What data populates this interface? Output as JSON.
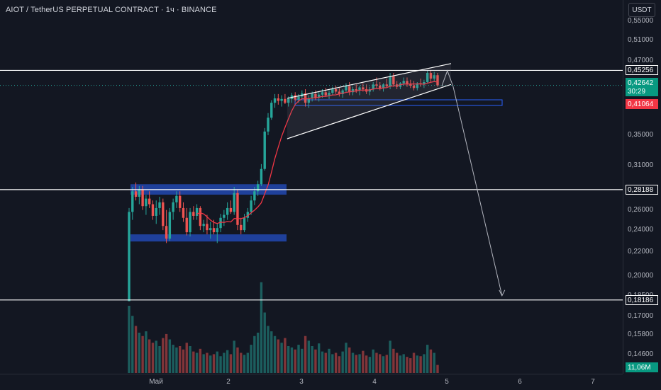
{
  "header": {
    "title": "AIOT / TetherUS PERPETUAL CONTRACT · 1ч · BINANCE"
  },
  "currency_button": "USDT",
  "price_axis": {
    "ticks": [
      "0,55000",
      "0,51000",
      "0,47000",
      "0,35000",
      "0,31000",
      "0,26000",
      "0,24000",
      "0,22000",
      "0,20000",
      "0,18500",
      "0,17000",
      "0,15800",
      "0,14600"
    ],
    "tick_values": [
      0.55,
      0.51,
      0.47,
      0.35,
      0.31,
      0.26,
      0.24,
      0.22,
      0.2,
      0.185,
      0.17,
      0.158,
      0.146
    ]
  },
  "price_labels": {
    "level_1": "0,45256",
    "current_price": "0,42642",
    "countdown": "30:29",
    "ma_value": "0,41064",
    "level_2": "0,28188",
    "level_3": "0,18186",
    "volume": "11,06M"
  },
  "time_axis": {
    "labels": [
      "Май",
      "2",
      "3",
      "4",
      "5",
      "6",
      "7"
    ]
  },
  "colors": {
    "background": "#131722",
    "up": "#26a69a",
    "down": "#ef5350",
    "ma": "#f23645",
    "range_box": "#2962ff",
    "level_line": "#ffffff"
  },
  "chart_data": {
    "type": "candlestick",
    "y_scale": "log",
    "horizontal_levels": [
      0.45256,
      0.28188,
      0.18186
    ],
    "current_price": 0.42642,
    "ma_value": 0.41064,
    "volume_last": "11,06M",
    "range_box": {
      "top": [
        0.281,
        0.288
      ],
      "bottom": [
        0.232,
        0.236
      ]
    },
    "rising_channel": {
      "upper": [
        [
          2.8,
          0.405
        ],
        [
          5.05,
          0.465
        ]
      ],
      "lower": [
        [
          2.8,
          0.345
        ],
        [
          5.05,
          0.428
        ]
      ]
    },
    "projection_arrow": {
      "from": [
        5.0,
        0.452
      ],
      "to": [
        5.75,
        0.185
      ]
    },
    "candles": [
      [
        0.181,
        0.262,
        0.181,
        0.258
      ],
      [
        0.258,
        0.285,
        0.25,
        0.28
      ],
      [
        0.28,
        0.29,
        0.27,
        0.274
      ],
      [
        0.274,
        0.286,
        0.266,
        0.282
      ],
      [
        0.282,
        0.286,
        0.26,
        0.264
      ],
      [
        0.264,
        0.276,
        0.255,
        0.272
      ],
      [
        0.272,
        0.28,
        0.262,
        0.266
      ],
      [
        0.266,
        0.27,
        0.25,
        0.254
      ],
      [
        0.254,
        0.27,
        0.246,
        0.262
      ],
      [
        0.262,
        0.274,
        0.255,
        0.268
      ],
      [
        0.268,
        0.272,
        0.24,
        0.244
      ],
      [
        0.244,
        0.26,
        0.228,
        0.232
      ],
      [
        0.232,
        0.262,
        0.23,
        0.258
      ],
      [
        0.258,
        0.272,
        0.25,
        0.268
      ],
      [
        0.268,
        0.28,
        0.262,
        0.275
      ],
      [
        0.275,
        0.28,
        0.258,
        0.262
      ],
      [
        0.262,
        0.268,
        0.248,
        0.252
      ],
      [
        0.252,
        0.262,
        0.235,
        0.238
      ],
      [
        0.238,
        0.262,
        0.234,
        0.258
      ],
      [
        0.258,
        0.264,
        0.25,
        0.254
      ],
      [
        0.254,
        0.266,
        0.25,
        0.262
      ],
      [
        0.262,
        0.264,
        0.24,
        0.244
      ],
      [
        0.244,
        0.25,
        0.238,
        0.246
      ],
      [
        0.246,
        0.255,
        0.236,
        0.24
      ],
      [
        0.24,
        0.248,
        0.232,
        0.242
      ],
      [
        0.242,
        0.25,
        0.236,
        0.238
      ],
      [
        0.238,
        0.246,
        0.228,
        0.242
      ],
      [
        0.242,
        0.256,
        0.238,
        0.252
      ],
      [
        0.252,
        0.26,
        0.244,
        0.255
      ],
      [
        0.255,
        0.268,
        0.25,
        0.262
      ],
      [
        0.262,
        0.27,
        0.256,
        0.258
      ],
      [
        0.258,
        0.285,
        0.255,
        0.278
      ],
      [
        0.278,
        0.282,
        0.24,
        0.245
      ],
      [
        0.245,
        0.252,
        0.236,
        0.24
      ],
      [
        0.24,
        0.256,
        0.238,
        0.252
      ],
      [
        0.252,
        0.262,
        0.248,
        0.258
      ],
      [
        0.258,
        0.275,
        0.255,
        0.27
      ],
      [
        0.27,
        0.285,
        0.265,
        0.28
      ],
      [
        0.28,
        0.292,
        0.275,
        0.288
      ],
      [
        0.288,
        0.312,
        0.286,
        0.306
      ],
      [
        0.306,
        0.36,
        0.304,
        0.355
      ],
      [
        0.355,
        0.382,
        0.35,
        0.375
      ],
      [
        0.375,
        0.402,
        0.372,
        0.398
      ],
      [
        0.398,
        0.412,
        0.39,
        0.405
      ],
      [
        0.405,
        0.412,
        0.395,
        0.401
      ],
      [
        0.401,
        0.41,
        0.392,
        0.404
      ],
      [
        0.404,
        0.412,
        0.396,
        0.398
      ],
      [
        0.398,
        0.408,
        0.392,
        0.404
      ],
      [
        0.404,
        0.414,
        0.398,
        0.41
      ],
      [
        0.41,
        0.415,
        0.4,
        0.403
      ],
      [
        0.403,
        0.412,
        0.398,
        0.408
      ],
      [
        0.408,
        0.418,
        0.404,
        0.413
      ],
      [
        0.413,
        0.42,
        0.392,
        0.398
      ],
      [
        0.398,
        0.41,
        0.39,
        0.405
      ],
      [
        0.405,
        0.416,
        0.4,
        0.412
      ],
      [
        0.412,
        0.418,
        0.402,
        0.406
      ],
      [
        0.406,
        0.416,
        0.4,
        0.411
      ],
      [
        0.411,
        0.42,
        0.406,
        0.415
      ],
      [
        0.415,
        0.422,
        0.408,
        0.41
      ],
      [
        0.41,
        0.418,
        0.404,
        0.414
      ],
      [
        0.414,
        0.424,
        0.41,
        0.42
      ],
      [
        0.42,
        0.426,
        0.412,
        0.416
      ],
      [
        0.416,
        0.422,
        0.408,
        0.412
      ],
      [
        0.412,
        0.42,
        0.406,
        0.418
      ],
      [
        0.418,
        0.43,
        0.414,
        0.425
      ],
      [
        0.425,
        0.432,
        0.41,
        0.415
      ],
      [
        0.415,
        0.424,
        0.41,
        0.42
      ],
      [
        0.42,
        0.428,
        0.414,
        0.418
      ],
      [
        0.418,
        0.426,
        0.41,
        0.423
      ],
      [
        0.423,
        0.43,
        0.416,
        0.42
      ],
      [
        0.42,
        0.428,
        0.412,
        0.416
      ],
      [
        0.416,
        0.424,
        0.41,
        0.42
      ],
      [
        0.42,
        0.432,
        0.416,
        0.428
      ],
      [
        0.428,
        0.44,
        0.422,
        0.426
      ],
      [
        0.426,
        0.432,
        0.418,
        0.422
      ],
      [
        0.422,
        0.43,
        0.416,
        0.428
      ],
      [
        0.428,
        0.438,
        0.422,
        0.425
      ],
      [
        0.425,
        0.448,
        0.42,
        0.442
      ],
      [
        0.442,
        0.448,
        0.424,
        0.428
      ],
      [
        0.428,
        0.434,
        0.42,
        0.424
      ],
      [
        0.424,
        0.432,
        0.42,
        0.43
      ],
      [
        0.43,
        0.44,
        0.426,
        0.434
      ],
      [
        0.434,
        0.44,
        0.424,
        0.428
      ],
      [
        0.428,
        0.436,
        0.422,
        0.426
      ],
      [
        0.426,
        0.434,
        0.418,
        0.422
      ],
      [
        0.422,
        0.432,
        0.418,
        0.43
      ],
      [
        0.43,
        0.438,
        0.424,
        0.428
      ],
      [
        0.428,
        0.436,
        0.422,
        0.432
      ],
      [
        0.432,
        0.452,
        0.43,
        0.448
      ],
      [
        0.448,
        0.452,
        0.432,
        0.438
      ],
      [
        0.438,
        0.45,
        0.434,
        0.444
      ],
      [
        0.444,
        0.448,
        0.424,
        0.4264
      ]
    ],
    "volumes": [
      1.0,
      0.85,
      0.7,
      0.6,
      0.55,
      0.62,
      0.5,
      0.45,
      0.48,
      0.4,
      0.52,
      0.58,
      0.5,
      0.42,
      0.38,
      0.4,
      0.35,
      0.45,
      0.4,
      0.32,
      0.3,
      0.36,
      0.28,
      0.3,
      0.26,
      0.28,
      0.32,
      0.25,
      0.3,
      0.34,
      0.28,
      0.48,
      0.38,
      0.3,
      0.27,
      0.3,
      0.42,
      0.55,
      0.6,
      1.35,
      0.9,
      0.7,
      0.62,
      0.55,
      0.5,
      0.45,
      0.52,
      0.4,
      0.38,
      0.35,
      0.42,
      0.36,
      0.55,
      0.48,
      0.4,
      0.35,
      0.44,
      0.32,
      0.3,
      0.36,
      0.28,
      0.3,
      0.25,
      0.32,
      0.45,
      0.38,
      0.3,
      0.27,
      0.28,
      0.33,
      0.26,
      0.24,
      0.35,
      0.3,
      0.28,
      0.25,
      0.27,
      0.48,
      0.36,
      0.3,
      0.26,
      0.28,
      0.24,
      0.22,
      0.3,
      0.26,
      0.25,
      0.28,
      0.42,
      0.35,
      0.3,
      0.12
    ]
  }
}
